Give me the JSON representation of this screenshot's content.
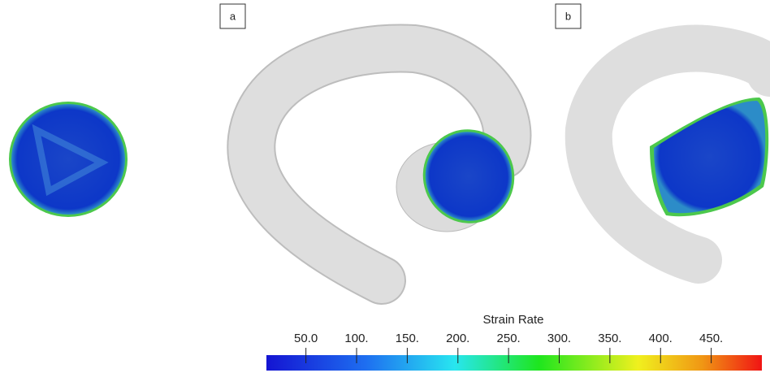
{
  "panels": [
    {
      "label": "a"
    },
    {
      "label": "b"
    }
  ],
  "colorbar": {
    "title": "Strain Rate",
    "range": [
      11,
      500
    ],
    "ticks": [
      {
        "value": 50,
        "label": "50.0"
      },
      {
        "value": 100,
        "label": "100."
      },
      {
        "value": 150,
        "label": "150."
      },
      {
        "value": 200,
        "label": "200."
      },
      {
        "value": 250,
        "label": "250."
      },
      {
        "value": 300,
        "label": "300."
      },
      {
        "value": 350,
        "label": "350."
      },
      {
        "value": 400,
        "label": "400."
      },
      {
        "value": 450,
        "label": "450."
      }
    ]
  }
}
